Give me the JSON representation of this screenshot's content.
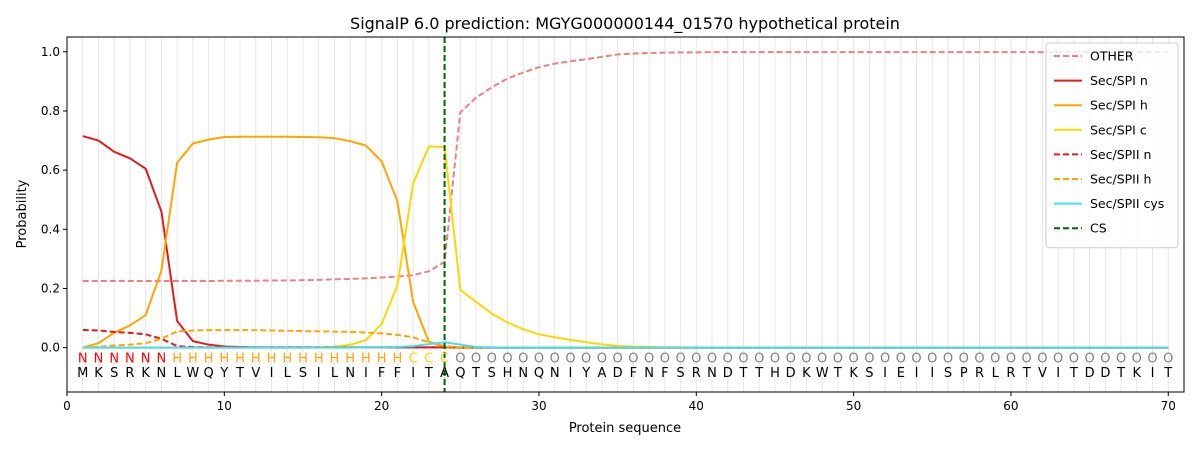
{
  "chart_data": {
    "type": "line",
    "title": "SignalP 6.0 prediction: MGYG000000144_01570 hypothetical protein",
    "xlabel": "Protein sequence",
    "ylabel": "Probability",
    "xlim": [
      0,
      71
    ],
    "ylim": [
      -0.15,
      1.05
    ],
    "x_ticks": [
      0,
      10,
      20,
      30,
      40,
      50,
      60,
      70
    ],
    "y_ticks": [
      0.0,
      0.2,
      0.4,
      0.6,
      0.8,
      1.0
    ],
    "x_tick_labels": [
      "0",
      "10",
      "20",
      "30",
      "40",
      "50",
      "60",
      "70"
    ],
    "y_tick_labels": [
      "0.0",
      "0.2",
      "0.4",
      "0.6",
      "0.8",
      "1.0"
    ],
    "grid": "vertical lines at each residue",
    "legend_position": "top-right",
    "cleavage_site": 24,
    "sequence": [
      "M",
      "K",
      "S",
      "R",
      "K",
      "N",
      "L",
      "W",
      "Q",
      "Y",
      "T",
      "V",
      "I",
      "L",
      "S",
      "I",
      "L",
      "N",
      "I",
      "F",
      "F",
      "I",
      "T",
      "A",
      "Q",
      "T",
      "S",
      "H",
      "N",
      "Q",
      "N",
      "I",
      "Y",
      "A",
      "D",
      "F",
      "N",
      "F",
      "S",
      "R",
      "N",
      "D",
      "T",
      "T",
      "H",
      "D",
      "K",
      "W",
      "T",
      "K",
      "S",
      "I",
      "E",
      "I",
      "I",
      "S",
      "P",
      "R",
      "L",
      "R",
      "T",
      "V",
      "I",
      "T",
      "D",
      "D",
      "T",
      "K",
      "I",
      "T"
    ],
    "labels": [
      "N",
      "N",
      "N",
      "N",
      "N",
      "N",
      "H",
      "H",
      "H",
      "H",
      "H",
      "H",
      "H",
      "H",
      "H",
      "H",
      "H",
      "H",
      "H",
      "H",
      "H",
      "C",
      "C",
      "C",
      "O",
      "O",
      "O",
      "O",
      "O",
      "O",
      "O",
      "O",
      "O",
      "O",
      "O",
      "O",
      "O",
      "O",
      "O",
      "O",
      "O",
      "O",
      "O",
      "O",
      "O",
      "O",
      "O",
      "O",
      "O",
      "O",
      "O",
      "O",
      "O",
      "O",
      "O",
      "O",
      "O",
      "O",
      "O",
      "O",
      "O",
      "O",
      "O",
      "O",
      "O",
      "O",
      "O",
      "O",
      "O",
      "O"
    ],
    "label_colors": {
      "N": "#ff0000",
      "H": "#ffa500",
      "C": "#ffd700",
      "O": "#808080"
    },
    "series": [
      {
        "name": "OTHER",
        "color": "#f08080",
        "dash": "dashed",
        "values": [
          0.225,
          0.225,
          0.225,
          0.225,
          0.225,
          0.225,
          0.225,
          0.225,
          0.225,
          0.226,
          0.226,
          0.226,
          0.227,
          0.227,
          0.228,
          0.229,
          0.231,
          0.232,
          0.234,
          0.237,
          0.24,
          0.245,
          0.258,
          0.29,
          0.795,
          0.845,
          0.88,
          0.91,
          0.93,
          0.948,
          0.96,
          0.968,
          0.975,
          0.983,
          0.991,
          0.994,
          0.996,
          0.997,
          0.998,
          0.998,
          0.999,
          0.999,
          0.999,
          0.999,
          0.999,
          0.999,
          0.999,
          0.999,
          0.999,
          0.999,
          0.999,
          0.999,
          0.999,
          0.999,
          0.999,
          0.999,
          0.999,
          0.999,
          0.999,
          0.999,
          0.999,
          0.999,
          0.999,
          0.999,
          0.999,
          0.999,
          0.999,
          0.999,
          0.999,
          0.999
        ]
      },
      {
        "name": "Sec/SPI n",
        "color": "#e31a1c",
        "dash": "solid",
        "values": [
          0.715,
          0.7,
          0.662,
          0.64,
          0.605,
          0.46,
          0.09,
          0.022,
          0.01,
          0.004,
          0.002,
          0.001,
          0.001,
          0.001,
          0.001,
          0.001,
          0.001,
          0.001,
          0.001,
          0.001,
          0.001,
          0.001,
          0.001,
          0.001,
          0.0,
          0.0,
          0.0,
          0.0,
          0.0,
          0.0,
          0.0,
          0.0,
          0.0,
          0.0,
          0.0,
          0.0,
          0.0,
          0.0,
          0.0,
          0.0,
          0.0,
          0.0,
          0.0,
          0.0,
          0.0,
          0.0,
          0.0,
          0.0,
          0.0,
          0.0,
          0.0,
          0.0,
          0.0,
          0.0,
          0.0,
          0.0,
          0.0,
          0.0,
          0.0,
          0.0,
          0.0,
          0.0,
          0.0,
          0.0,
          0.0,
          0.0,
          0.0,
          0.0,
          0.0,
          0.0
        ]
      },
      {
        "name": "Sec/SPI h",
        "color": "#ffa500",
        "dash": "solid",
        "values": [
          0.0,
          0.015,
          0.05,
          0.075,
          0.11,
          0.26,
          0.625,
          0.69,
          0.703,
          0.712,
          0.713,
          0.713,
          0.713,
          0.713,
          0.712,
          0.711,
          0.708,
          0.698,
          0.683,
          0.63,
          0.495,
          0.155,
          0.02,
          0.003,
          0.001,
          0.0,
          0.0,
          0.0,
          0.0,
          0.0,
          0.0,
          0.0,
          0.0,
          0.0,
          0.0,
          0.0,
          0.0,
          0.0,
          0.0,
          0.0,
          0.0,
          0.0,
          0.0,
          0.0,
          0.0,
          0.0,
          0.0,
          0.0,
          0.0,
          0.0,
          0.0,
          0.0,
          0.0,
          0.0,
          0.0,
          0.0,
          0.0,
          0.0,
          0.0,
          0.0,
          0.0,
          0.0,
          0.0,
          0.0,
          0.0,
          0.0,
          0.0,
          0.0,
          0.0,
          0.0
        ]
      },
      {
        "name": "Sec/SPI c",
        "color": "#ffd700",
        "dash": "solid",
        "values": [
          0.0,
          0.0,
          0.0,
          0.0,
          0.0,
          0.0,
          0.0,
          0.0,
          0.0,
          0.0,
          0.0,
          0.0,
          0.0,
          0.0,
          0.0,
          0.001,
          0.003,
          0.01,
          0.025,
          0.08,
          0.21,
          0.555,
          0.68,
          0.678,
          0.195,
          0.155,
          0.115,
          0.085,
          0.062,
          0.045,
          0.035,
          0.026,
          0.018,
          0.011,
          0.006,
          0.003,
          0.002,
          0.001,
          0.001,
          0.001,
          0.0,
          0.0,
          0.0,
          0.0,
          0.0,
          0.0,
          0.0,
          0.0,
          0.0,
          0.0,
          0.0,
          0.0,
          0.0,
          0.0,
          0.0,
          0.0,
          0.0,
          0.0,
          0.0,
          0.0,
          0.0,
          0.0,
          0.0,
          0.0,
          0.0,
          0.0,
          0.0,
          0.0,
          0.0,
          0.0
        ]
      },
      {
        "name": "Sec/SPII n",
        "color": "#e31a1c",
        "dash": "dashed",
        "values": [
          0.06,
          0.058,
          0.053,
          0.05,
          0.045,
          0.03,
          0.005,
          0.002,
          0.001,
          0.001,
          0.001,
          0.001,
          0.001,
          0.001,
          0.001,
          0.001,
          0.001,
          0.001,
          0.001,
          0.001,
          0.001,
          0.001,
          0.001,
          0.001,
          0.0,
          0.0,
          0.0,
          0.0,
          0.0,
          0.0,
          0.0,
          0.0,
          0.0,
          0.0,
          0.0,
          0.0,
          0.0,
          0.0,
          0.0,
          0.0,
          0.0,
          0.0,
          0.0,
          0.0,
          0.0,
          0.0,
          0.0,
          0.0,
          0.0,
          0.0,
          0.0,
          0.0,
          0.0,
          0.0,
          0.0,
          0.0,
          0.0,
          0.0,
          0.0,
          0.0,
          0.0,
          0.0,
          0.0,
          0.0,
          0.0,
          0.0,
          0.0,
          0.0,
          0.0,
          0.0
        ]
      },
      {
        "name": "Sec/SPII h",
        "color": "#ffa500",
        "dash": "dashed",
        "values": [
          0.0,
          0.003,
          0.007,
          0.01,
          0.015,
          0.03,
          0.055,
          0.058,
          0.059,
          0.059,
          0.059,
          0.059,
          0.058,
          0.057,
          0.056,
          0.055,
          0.054,
          0.053,
          0.051,
          0.048,
          0.043,
          0.035,
          0.018,
          0.005,
          0.001,
          0.0,
          0.0,
          0.0,
          0.0,
          0.0,
          0.0,
          0.0,
          0.0,
          0.0,
          0.0,
          0.0,
          0.0,
          0.0,
          0.0,
          0.0,
          0.0,
          0.0,
          0.0,
          0.0,
          0.0,
          0.0,
          0.0,
          0.0,
          0.0,
          0.0,
          0.0,
          0.0,
          0.0,
          0.0,
          0.0,
          0.0,
          0.0,
          0.0,
          0.0,
          0.0,
          0.0,
          0.0,
          0.0,
          0.0,
          0.0,
          0.0,
          0.0,
          0.0,
          0.0,
          0.0
        ]
      },
      {
        "name": "Sec/SPII cys",
        "color": "#40e0f0",
        "dash": "solid",
        "values": [
          0.0,
          0.0,
          0.0,
          0.0,
          0.0,
          0.0,
          0.0,
          0.0,
          0.0,
          0.0,
          0.0,
          0.0,
          0.0,
          0.0,
          0.0,
          0.0,
          0.0,
          0.0,
          0.001,
          0.001,
          0.002,
          0.005,
          0.012,
          0.018,
          0.01,
          0.002,
          0.001,
          0.0,
          0.0,
          0.0,
          0.0,
          0.0,
          0.0,
          0.0,
          0.0,
          0.0,
          0.0,
          0.0,
          0.0,
          0.0,
          0.0,
          0.0,
          0.0,
          0.0,
          0.0,
          0.0,
          0.0,
          0.0,
          0.0,
          0.0,
          0.0,
          0.0,
          0.0,
          0.0,
          0.0,
          0.0,
          0.0,
          0.0,
          0.0,
          0.0,
          0.0,
          0.0,
          0.0,
          0.0,
          0.0,
          0.0,
          0.0,
          0.0,
          0.0,
          0.0
        ]
      },
      {
        "name": "CS",
        "color": "#006400",
        "dash": "dashed",
        "type": "vline",
        "x": 24
      }
    ]
  }
}
